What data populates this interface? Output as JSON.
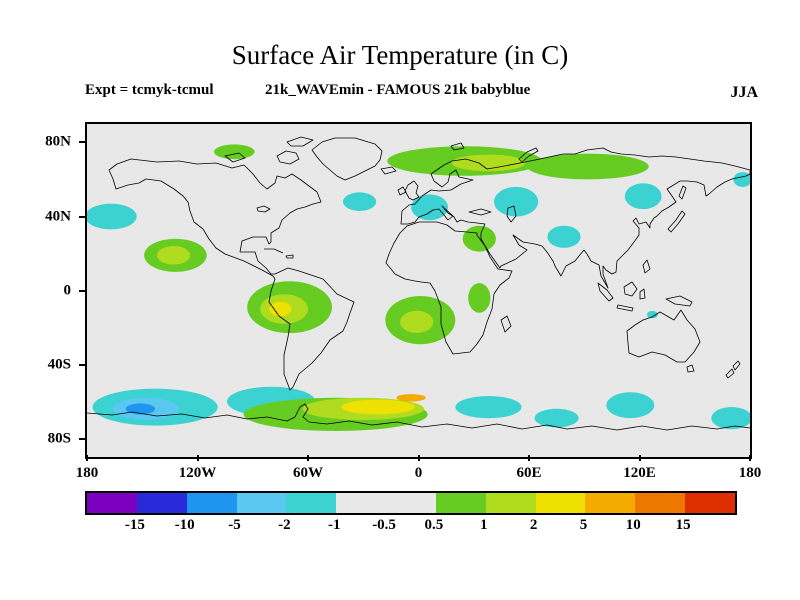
{
  "title": "Surface Air Temperature (in C)",
  "annotations": {
    "experiment": "Expt = tcmyk-tcmul",
    "comparison": "21k_WAVEmin - FAMOUS 21k babyblue",
    "season": "JJA"
  },
  "map": {
    "background_color": "#e8e8e8",
    "x_ticks": [
      {
        "label": "180",
        "lon": -180
      },
      {
        "label": "120W",
        "lon": -120
      },
      {
        "label": "60W",
        "lon": -60
      },
      {
        "label": "0",
        "lon": 0
      },
      {
        "label": "60E",
        "lon": 60
      },
      {
        "label": "120E",
        "lon": 120
      },
      {
        "label": "180",
        "lon": 180
      }
    ],
    "y_ticks": [
      {
        "label": "80N",
        "lat": 80
      },
      {
        "label": "40N",
        "lat": 40
      },
      {
        "label": "0",
        "lat": 0
      },
      {
        "label": "40S",
        "lat": -40
      },
      {
        "label": "80S",
        "lat": -80
      }
    ]
  },
  "colorbar": {
    "tick_labels": [
      "-15",
      "-10",
      "-5",
      "-2",
      "-1",
      "-0.5",
      "0.5",
      "1",
      "2",
      "5",
      "10",
      "15"
    ],
    "levels": [
      -15,
      -10,
      -5,
      -2,
      -1,
      -0.5,
      0.5,
      1,
      2,
      5,
      10,
      15
    ],
    "colors": [
      "#7d00bf",
      "#2a2ad8",
      "#1e96f0",
      "#5ac8f0",
      "#3cd2d2",
      "#e8e8e8",
      "#e8e8e8",
      "#66cc22",
      "#b0dc20",
      "#eee000",
      "#f5aa00",
      "#ee7700",
      "#dd2e00"
    ]
  },
  "chart_data": {
    "type": "heatmap",
    "title": "Surface Air Temperature (in C)",
    "units": "degrees C (difference: 21k_WAVEmin - FAMOUS 21k babyblue)",
    "season": "JJA",
    "lon_range": [
      -180,
      180
    ],
    "lat_range": [
      -90,
      90
    ],
    "contour_levels": [
      -15,
      -10,
      -5,
      -2,
      -1,
      -0.5,
      0.5,
      1,
      2,
      5,
      10,
      15
    ],
    "neutral_band": [
      -0.5,
      0.5
    ],
    "regions": [
      {
        "name": "south-pacific-cool",
        "lon": -143,
        "lat": -63,
        "rlon": 34,
        "rlat": 10,
        "value": -1.5
      },
      {
        "name": "south-pacific-cool-core",
        "lon": -148,
        "lat": -64,
        "rlon": 18,
        "rlat": 6,
        "value": -3
      },
      {
        "name": "south-pacific-cool-inner",
        "lon": -151,
        "lat": -64,
        "rlon": 8,
        "rlat": 3,
        "value": -7
      },
      {
        "name": "southern-ocean-cool-drake",
        "lon": -80,
        "lat": -60,
        "rlon": 24,
        "rlat": 8,
        "value": -1.5
      },
      {
        "name": "southern-ocean-warm-band",
        "lon": -45,
        "lat": -67,
        "rlon": 50,
        "rlat": 9,
        "value": 0.7
      },
      {
        "name": "southern-ocean-warm-band-core",
        "lon": -30,
        "lat": -64,
        "rlon": 33,
        "rlat": 6,
        "value": 1.5
      },
      {
        "name": "southern-ocean-warm-band-yellow",
        "lon": -22,
        "lat": -63,
        "rlon": 20,
        "rlat": 4,
        "value": 3
      },
      {
        "name": "southern-ocean-warm-orange",
        "lon": -4,
        "lat": -58,
        "rlon": 8,
        "rlat": 2,
        "value": 7
      },
      {
        "name": "south-indian-cool-west",
        "lon": 38,
        "lat": -63,
        "rlon": 18,
        "rlat": 6,
        "value": -1.5
      },
      {
        "name": "south-indian-cool-mid",
        "lon": 75,
        "lat": -69,
        "rlon": 12,
        "rlat": 5,
        "value": -1.5
      },
      {
        "name": "south-indian-cool-east",
        "lon": 115,
        "lat": -62,
        "rlon": 13,
        "rlat": 7,
        "value": -1.5
      },
      {
        "name": "south-pacific-cool-east",
        "lon": 170,
        "lat": -69,
        "rlon": 11,
        "rlat": 6,
        "value": -1.5
      },
      {
        "name": "northwest-pacific-cool",
        "lon": -167,
        "lat": 40,
        "rlon": 14,
        "rlat": 7,
        "value": -1.5
      },
      {
        "name": "north-pacific-warm",
        "lon": -132,
        "lat": 19,
        "rlon": 17,
        "rlat": 9,
        "value": 0.7
      },
      {
        "name": "north-pacific-warm-core",
        "lon": -133,
        "lat": 19,
        "rlon": 9,
        "rlat": 5,
        "value": 1.5
      },
      {
        "name": "tropical-south-america-warm",
        "lon": -70,
        "lat": -9,
        "rlon": 23,
        "rlat": 14,
        "value": 0.7
      },
      {
        "name": "tropical-south-america-warm-core",
        "lon": -73,
        "lat": -10,
        "rlon": 13,
        "rlat": 8,
        "value": 1.5
      },
      {
        "name": "tropical-south-america-warm-yellow",
        "lon": -75,
        "lat": -10,
        "rlon": 6,
        "rlat": 4,
        "value": 3
      },
      {
        "name": "south-atlantic-warm",
        "lon": 1,
        "lat": -16,
        "rlon": 19,
        "rlat": 13,
        "value": 0.7
      },
      {
        "name": "south-atlantic-warm-core",
        "lon": -1,
        "lat": -17,
        "rlon": 9,
        "rlat": 6,
        "value": 1.5
      },
      {
        "name": "east-africa-warm",
        "lon": 33,
        "lat": -4,
        "rlon": 6,
        "rlat": 8,
        "value": 0.7
      },
      {
        "name": "middle-east-warm",
        "lon": 33,
        "lat": 28,
        "rlon": 9,
        "rlat": 7,
        "value": 0.7
      },
      {
        "name": "mid-atlantic-cool",
        "lon": -32,
        "lat": 48,
        "rlon": 9,
        "rlat": 5,
        "value": -1.5
      },
      {
        "name": "west-europe-cool",
        "lon": 6,
        "lat": 45,
        "rlon": 10,
        "rlat": 7,
        "value": -1.5
      },
      {
        "name": "scandinavia-russia-warm",
        "lon": 25,
        "lat": 70,
        "rlon": 42,
        "rlat": 8,
        "value": 0.7
      },
      {
        "name": "siberia-warm",
        "lon": 92,
        "lat": 67,
        "rlon": 33,
        "rlat": 7,
        "value": 0.7
      },
      {
        "name": "scandinavia-warm-core",
        "lon": 38,
        "lat": 69,
        "rlon": 20,
        "rlat": 4.5,
        "value": 1.5
      },
      {
        "name": "arctic-canada-warm",
        "lon": -100,
        "lat": 75,
        "rlon": 11,
        "rlat": 4,
        "value": 0.7
      },
      {
        "name": "central-asia-cool",
        "lon": 53,
        "lat": 48,
        "rlon": 12,
        "rlat": 8,
        "value": -1.5
      },
      {
        "name": "himalaya-cool",
        "lon": 79,
        "lat": 29,
        "rlon": 9,
        "rlat": 6,
        "value": -1.5
      },
      {
        "name": "northeast-asia-cool",
        "lon": 122,
        "lat": 51,
        "rlon": 10,
        "rlat": 7,
        "value": -1.5
      },
      {
        "name": "bering-cool",
        "lon": 176,
        "lat": 60,
        "rlon": 5,
        "rlat": 4,
        "value": -1.5
      },
      {
        "name": "north-australia-cool",
        "lon": 127,
        "lat": -13,
        "rlon": 3,
        "rlat": 2,
        "value": -1.5
      }
    ]
  }
}
